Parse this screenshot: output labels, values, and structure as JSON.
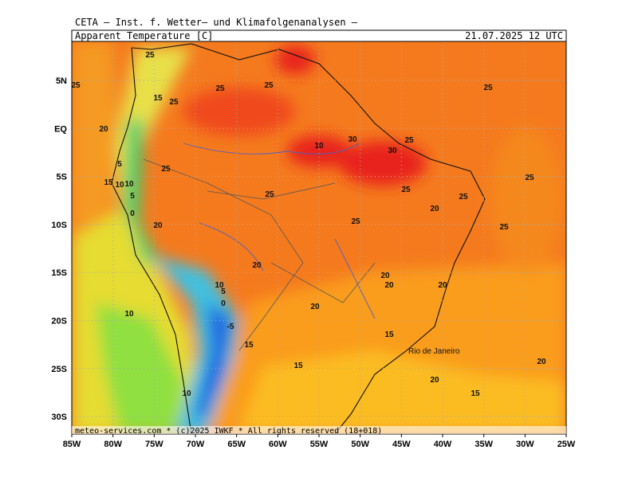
{
  "header": {
    "institution": "CETA — Inst. f. Wetter— und Klimafolgenanalysen —",
    "title": "Apparent Temperature [C]",
    "valid_time": "21.07.2025 12 UTC"
  },
  "map": {
    "lat_labels": [
      "5N",
      "EQ",
      "5S",
      "10S",
      "15S",
      "20S",
      "25S",
      "30S"
    ],
    "lon_labels": [
      "85W",
      "80W",
      "75W",
      "70W",
      "65W",
      "60W",
      "55W",
      "50W",
      "45W",
      "40W",
      "35W",
      "30W",
      "25W"
    ],
    "contour_labels": [
      25,
      25,
      15,
      25,
      25,
      25,
      25,
      20,
      30,
      10,
      30,
      25,
      5,
      25,
      15,
      10,
      10,
      5,
      25,
      25,
      25,
      25,
      0,
      20,
      25,
      20,
      25,
      20,
      20,
      20,
      20,
      10,
      5,
      0,
      10,
      20,
      -5,
      15,
      15,
      15,
      20,
      20,
      10,
      15
    ],
    "city_label": "Rio de Janeiro"
  },
  "footer": "meteo-services.com * (c)2025 IWKF * All rights reserved (18+018)"
}
